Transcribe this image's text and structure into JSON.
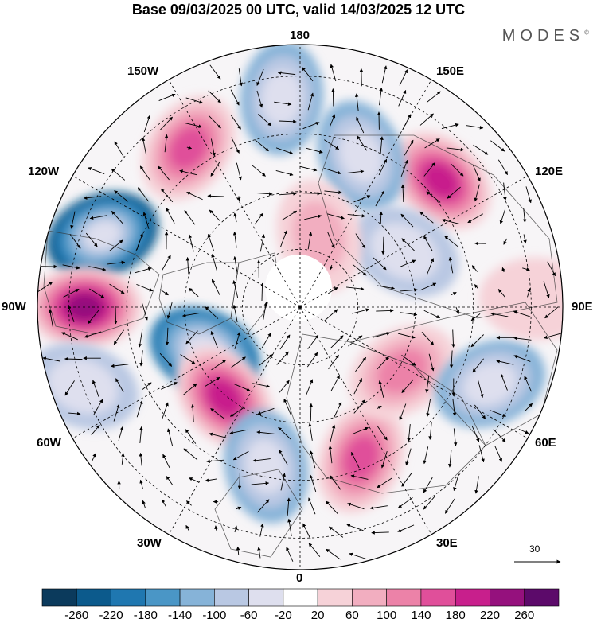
{
  "title": "Base 09/03/2025 00 UTC, valid 14/03/2025 12 UTC",
  "brand": "MODES",
  "brand_mark": "©",
  "longitude_labels": {
    "top": "180",
    "bottom": "0",
    "left": "90W",
    "right": "90E",
    "upper_left_150": "150W",
    "upper_right_150": "150E",
    "left_120": "120W",
    "right_120": "120E",
    "lower_left_60": "60W",
    "lower_right_60": "60E",
    "lower_left_30": "30W",
    "lower_right_30": "30E"
  },
  "vector_scale_label": "30",
  "colorbar": {
    "ticks": [
      "-260",
      "-220",
      "-180",
      "-140",
      "-100",
      "-60",
      "-20",
      "20",
      "60",
      "100",
      "140",
      "180",
      "220",
      "260"
    ],
    "colors": [
      "#0b3a5c",
      "#0c5a8c",
      "#1f77b0",
      "#4a96c6",
      "#86b3d8",
      "#b9c8e3",
      "#dedfee",
      "#ffffff",
      "#f6d2d8",
      "#f2aec0",
      "#ec82a8",
      "#e04f9a",
      "#c81f8c",
      "#95117d",
      "#5c0a6a"
    ]
  },
  "anomaly_blobs": [
    {
      "lon": -110,
      "colat": 0.8,
      "value": -240
    },
    {
      "lon": -90,
      "colat": 0.82,
      "value": 240
    },
    {
      "lon": -145,
      "colat": 0.74,
      "value": 150
    },
    {
      "lon": -65,
      "colat": 0.4,
      "value": -190
    },
    {
      "lon": -40,
      "colat": 0.45,
      "value": 200
    },
    {
      "lon": -12,
      "colat": 0.62,
      "value": -120
    },
    {
      "lon": 22,
      "colat": 0.62,
      "value": 160
    },
    {
      "lon": 58,
      "colat": 0.46,
      "value": 120
    },
    {
      "lon": 68,
      "colat": 0.78,
      "value": -110
    },
    {
      "lon": 132,
      "colat": 0.72,
      "value": 190
    },
    {
      "lon": 158,
      "colat": 0.62,
      "value": -110
    },
    {
      "lon": 118,
      "colat": 0.45,
      "value": -90
    },
    {
      "lon": 165,
      "colat": 0.28,
      "value": 70
    },
    {
      "lon": -175,
      "colat": 0.8,
      "value": -110
    },
    {
      "lon": -70,
      "colat": 0.88,
      "value": -70
    },
    {
      "lon": 92,
      "colat": 0.9,
      "value": 50
    }
  ]
}
